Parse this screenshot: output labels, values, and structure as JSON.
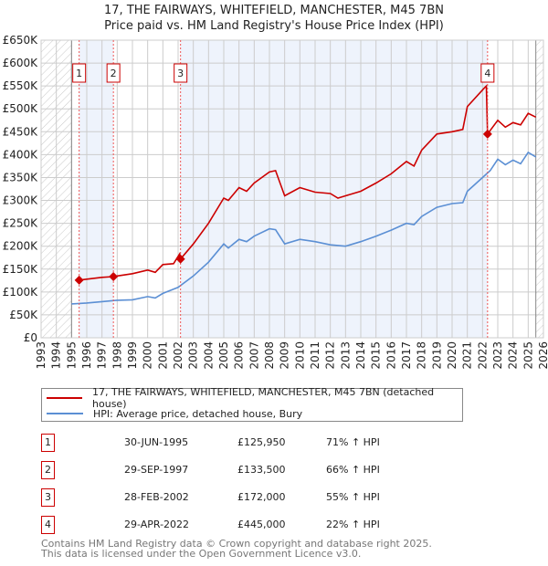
{
  "title_line1": "17, THE FAIRWAYS, WHITEFIELD, MANCHESTER, M45 7BN",
  "title_line2": "Price paid vs. HM Land Registry's House Price Index (HPI)",
  "colors": {
    "property": "#cc0000",
    "hpi": "#5b8fd4",
    "band": "#eef3fc",
    "grid": "#cccccc"
  },
  "chart_data": {
    "type": "line",
    "xlim": [
      1993,
      2026
    ],
    "ylim": [
      0,
      650000
    ],
    "y_ticks": [
      0,
      50000,
      100000,
      150000,
      200000,
      250000,
      300000,
      350000,
      400000,
      450000,
      500000,
      550000,
      600000,
      650000
    ],
    "y_tick_labels": [
      "£0",
      "£50K",
      "£100K",
      "£150K",
      "£200K",
      "£250K",
      "£300K",
      "£350K",
      "£400K",
      "£450K",
      "£500K",
      "£550K",
      "£600K",
      "£650K"
    ],
    "x_tick_labels": [
      "1993",
      "1994",
      "1995",
      "1996",
      "1997",
      "1998",
      "1999",
      "2000",
      "2001",
      "2002",
      "2003",
      "2004",
      "2005",
      "2006",
      "2007",
      "2008",
      "2009",
      "2010",
      "2011",
      "2012",
      "2013",
      "2014",
      "2015",
      "2016",
      "2017",
      "2018",
      "2019",
      "2020",
      "2021",
      "2022",
      "2023",
      "2024",
      "2025",
      "2026"
    ],
    "data_range": [
      1995.0,
      2025.5
    ],
    "grid": true,
    "series": [
      {
        "name": "17, THE FAIRWAYS, WHITEFIELD, MANCHESTER, M45 7BN (detached house)",
        "x": [
          1995.5,
          1996,
          1997,
          1997.75,
          1998,
          1999,
          2000,
          2000.5,
          2001,
          2001.7,
          2002.1,
          2002.16,
          2003,
          2004,
          2005,
          2005.3,
          2006,
          2006.5,
          2007,
          2008,
          2008.4,
          2009,
          2010,
          2011,
          2012,
          2012.5,
          2013,
          2014,
          2015,
          2016,
          2017,
          2017.5,
          2018,
          2019,
          2020,
          2020.7,
          2021,
          2022.1,
          2022.25,
          2022.33,
          2023,
          2023.5,
          2024,
          2024.5,
          2025,
          2025.5
        ],
        "y": [
          125950,
          128000,
          132000,
          133500,
          135000,
          140000,
          148000,
          143000,
          160000,
          162000,
          183000,
          172000,
          205000,
          250000,
          305000,
          300000,
          328000,
          320000,
          338000,
          362000,
          365000,
          310000,
          328000,
          318000,
          315000,
          305000,
          310000,
          320000,
          338000,
          358000,
          385000,
          375000,
          410000,
          445000,
          450000,
          455000,
          505000,
          545000,
          550000,
          445000,
          475000,
          460000,
          470000,
          465000,
          490000,
          482000
        ]
      },
      {
        "name": "HPI: Average price, detached house, Bury",
        "x": [
          1995,
          1996,
          1997,
          1998,
          1999,
          2000,
          2000.5,
          2001,
          2002,
          2003,
          2004,
          2005,
          2005.3,
          2006,
          2006.5,
          2007,
          2008,
          2008.4,
          2009,
          2010,
          2011,
          2012,
          2013,
          2014,
          2015,
          2016,
          2017,
          2017.5,
          2018,
          2019,
          2020,
          2020.7,
          2021,
          2022,
          2022.5,
          2023,
          2023.5,
          2024,
          2024.5,
          2025,
          2025.5
        ],
        "y": [
          74000,
          76000,
          79000,
          82000,
          83000,
          90000,
          87000,
          97000,
          110000,
          135000,
          165000,
          205000,
          196000,
          215000,
          210000,
          222000,
          238000,
          236000,
          205000,
          215000,
          210000,
          203000,
          200000,
          210000,
          222000,
          235000,
          250000,
          247000,
          265000,
          285000,
          293000,
          295000,
          320000,
          350000,
          365000,
          390000,
          378000,
          388000,
          380000,
          405000,
          395000
        ]
      }
    ],
    "sales": [
      {
        "label": "1",
        "x": 1995.5,
        "y": 125950,
        "date": "30-JUN-1995",
        "price": "£125,950",
        "pct": "71% ↑ HPI"
      },
      {
        "label": "2",
        "x": 1997.75,
        "y": 133500,
        "date": "29-SEP-1997",
        "price": "£133,500",
        "pct": "66% ↑ HPI"
      },
      {
        "label": "3",
        "x": 2002.16,
        "y": 172000,
        "date": "28-FEB-2002",
        "price": "£172,000",
        "pct": "55% ↑ HPI"
      },
      {
        "label": "4",
        "x": 2022.33,
        "y": 445000,
        "date": "29-APR-2022",
        "price": "£445,000",
        "pct": "22% ↑ HPI"
      }
    ]
  },
  "legend": {
    "property": "17, THE FAIRWAYS, WHITEFIELD, MANCHESTER, M45 7BN (detached house)",
    "hpi": "HPI: Average price, detached house, Bury"
  },
  "footer": {
    "line1": "Contains HM Land Registry data © Crown copyright and database right 2025.",
    "line2": "This data is licensed under the Open Government Licence v3.0."
  }
}
